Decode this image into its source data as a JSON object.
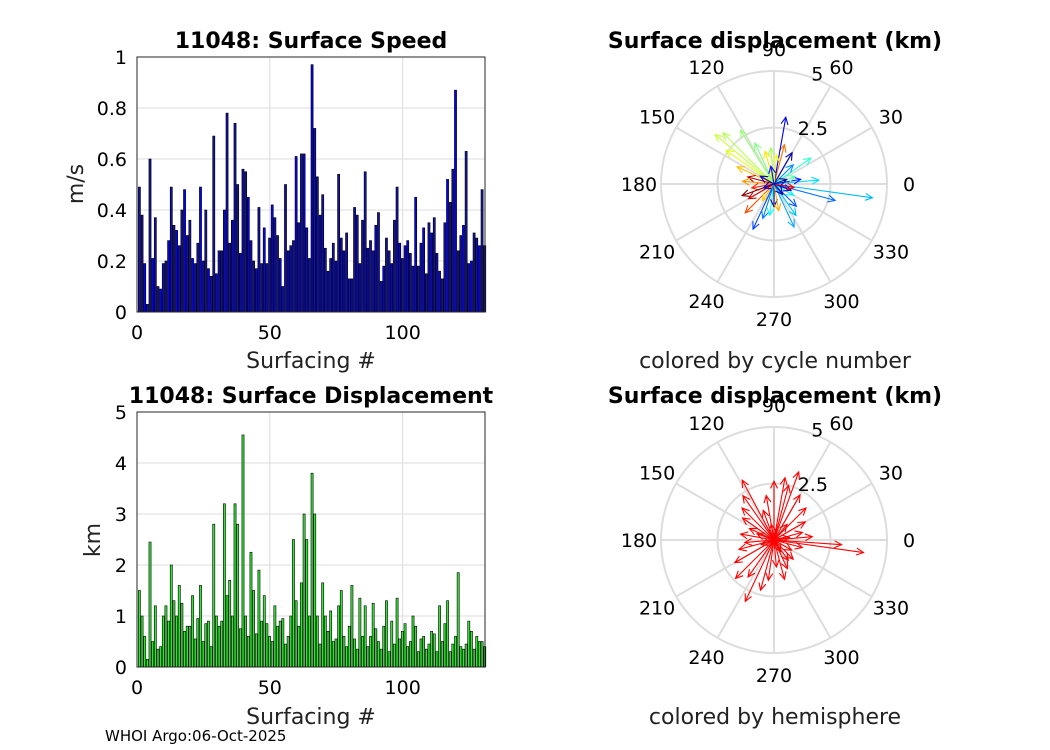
{
  "footer": "WHOI Argo:06-Oct-2025",
  "colors": {
    "speed_bar": "#1212A0",
    "speed_bar_alt": "#0000FF",
    "disp_bar": "#33E533",
    "hemisphere_arrow": "#FF0000",
    "grid": "#DDDDDD"
  },
  "chart_data": [
    {
      "type": "bar",
      "title": "11048: Surface Speed",
      "xlabel": "Surfacing #",
      "ylabel": "m/s",
      "xlim": [
        0,
        131
      ],
      "ylim": [
        0,
        1
      ],
      "xticks": [
        "0",
        "50",
        "100"
      ],
      "yticks": [
        "0",
        "0.2",
        "0.4",
        "0.6",
        "0.8",
        "1"
      ],
      "values": [
        0.49,
        0.38,
        0.19,
        0.03,
        0.6,
        0.21,
        0.37,
        0.1,
        0.09,
        0.19,
        0.2,
        0.28,
        0.49,
        0.34,
        0.32,
        0.26,
        0.4,
        0.48,
        0.3,
        0.36,
        0.21,
        0.19,
        0.27,
        0.49,
        0.2,
        0.4,
        0.17,
        0.14,
        0.69,
        0.15,
        0.24,
        0.24,
        0.4,
        0.78,
        0.27,
        0.36,
        0.74,
        0.5,
        0.23,
        0.56,
        0.55,
        0.45,
        0.28,
        0.2,
        0.17,
        0.41,
        0.19,
        0.33,
        0.19,
        0.29,
        0.42,
        0.37,
        0.3,
        0.21,
        0.1,
        0.5,
        0.24,
        0.26,
        0.28,
        0.61,
        0.35,
        0.62,
        0.62,
        0.33,
        0.21,
        0.97,
        0.72,
        0.53,
        0.38,
        0.46,
        0.25,
        0.16,
        0.21,
        0.27,
        0.2,
        0.54,
        0.29,
        0.24,
        0.31,
        0.13,
        0.13,
        0.41,
        0.38,
        0.19,
        0.36,
        0.55,
        0.25,
        0.28,
        0.24,
        0.34,
        0.39,
        0.12,
        0.18,
        0.29,
        0.24,
        0.19,
        0.36,
        0.49,
        0.27,
        0.21,
        0.26,
        0.28,
        0.23,
        0.18,
        0.45,
        0.18,
        0.27,
        0.33,
        0.15,
        0.35,
        0.31,
        0.37,
        0.23,
        0.16,
        0.13,
        0.35,
        0.52,
        0.43,
        0.56,
        0.87,
        0.24,
        0.3,
        0.34,
        0.63,
        0.19,
        0.2,
        0.31,
        0.29,
        0.26,
        0.48,
        0.26
      ]
    },
    {
      "type": "bar",
      "title": "11048: Surface Displacement",
      "xlabel": "Surfacing #",
      "ylabel": "km",
      "xlim": [
        0,
        131
      ],
      "ylim": [
        0,
        5
      ],
      "xticks": [
        "0",
        "50",
        "100"
      ],
      "yticks": [
        "0",
        "1",
        "2",
        "3",
        "4",
        "5"
      ],
      "values": [
        1.5,
        1.0,
        0.6,
        0.15,
        2.45,
        0.5,
        1.2,
        0.35,
        0.4,
        1.0,
        1.2,
        0.9,
        2.0,
        1.3,
        1.0,
        1.6,
        1.25,
        0.7,
        0.8,
        0.8,
        1.4,
        0.55,
        0.95,
        1.6,
        0.5,
        0.85,
        0.9,
        0.4,
        2.8,
        1.0,
        0.8,
        0.9,
        3.2,
        1.4,
        1.7,
        1.0,
        3.2,
        2.8,
        0.75,
        4.55,
        1.0,
        0.6,
        2.25,
        1.5,
        0.65,
        1.9,
        0.9,
        1.4,
        0.85,
        0.6,
        0.5,
        1.2,
        0.8,
        0.9,
        0.95,
        0.45,
        0.6,
        1.0,
        2.5,
        1.3,
        0.8,
        1.65,
        3.0,
        2.5,
        1.0,
        3.8,
        3.0,
        1.0,
        0.45,
        1.65,
        1.0,
        0.7,
        1.1,
        0.5,
        0.55,
        1.2,
        1.5,
        0.6,
        0.4,
        0.8,
        1.6,
        0.55,
        0.35,
        1.35,
        0.6,
        1.2,
        0.4,
        0.6,
        1.25,
        0.75,
        0.5,
        0.35,
        0.8,
        1.3,
        0.3,
        0.9,
        0.45,
        1.35,
        0.55,
        0.7,
        0.85,
        0.4,
        0.5,
        1.0,
        0.8,
        0.3,
        0.55,
        0.6,
        0.35,
        0.45,
        0.7,
        0.65,
        0.3,
        1.2,
        0.5,
        0.85,
        1.3,
        0.3,
        0.45,
        0.6,
        1.85,
        0.4,
        0.35,
        0.45,
        0.9,
        0.7,
        0.35,
        0.6,
        0.5,
        0.5,
        0.4
      ]
    },
    {
      "type": "polar",
      "title": "Surface displacement (km)",
      "xlabel": "colored by cycle number",
      "rlim": [
        0,
        5
      ],
      "rticks": [
        "2.5",
        "5"
      ],
      "angle_labels": [
        "0",
        "30",
        "60",
        "90",
        "120",
        "150",
        "180",
        "210",
        "240",
        "270",
        "300",
        "330"
      ],
      "color_mode": "cycle",
      "arrows": [
        {
          "angle": -8,
          "r": 4.4,
          "cycle": 40
        },
        {
          "angle": -15,
          "r": 2.8,
          "cycle": 30
        },
        {
          "angle": 5,
          "r": 2.0,
          "cycle": 45
        },
        {
          "angle": 10,
          "r": 1.2,
          "cycle": 20
        },
        {
          "angle": 20,
          "r": 1.0,
          "cycle": 60
        },
        {
          "angle": 35,
          "r": 2.0,
          "cycle": 55
        },
        {
          "angle": 45,
          "r": 1.2,
          "cycle": 35
        },
        {
          "angle": 60,
          "r": 1.6,
          "cycle": 5
        },
        {
          "angle": 75,
          "r": 1.8,
          "cycle": 100
        },
        {
          "angle": 80,
          "r": 3.0,
          "cycle": 15
        },
        {
          "angle": 85,
          "r": 1.3,
          "cycle": 80
        },
        {
          "angle": 95,
          "r": 1.6,
          "cycle": 70
        },
        {
          "angle": 105,
          "r": 1.5,
          "cycle": 85
        },
        {
          "angle": 115,
          "r": 2.0,
          "cycle": 65
        },
        {
          "angle": 122,
          "r": 2.8,
          "cycle": 68
        },
        {
          "angle": 135,
          "r": 3.2,
          "cycle": 72
        },
        {
          "angle": 140,
          "r": 3.4,
          "cycle": 75
        },
        {
          "angle": 145,
          "r": 2.6,
          "cycle": 78
        },
        {
          "angle": 155,
          "r": 1.8,
          "cycle": 90
        },
        {
          "angle": 165,
          "r": 1.2,
          "cycle": 125
        },
        {
          "angle": 175,
          "r": 1.4,
          "cycle": 95
        },
        {
          "angle": 190,
          "r": 1.0,
          "cycle": 110
        },
        {
          "angle": 200,
          "r": 1.5,
          "cycle": 130
        },
        {
          "angle": 210,
          "r": 1.3,
          "cycle": 120
        },
        {
          "angle": 225,
          "r": 1.8,
          "cycle": 105
        },
        {
          "angle": 235,
          "r": 0.9,
          "cycle": 88
        },
        {
          "angle": 245,
          "r": 2.2,
          "cycle": 25
        },
        {
          "angle": 252,
          "r": 1.6,
          "cycle": 33
        },
        {
          "angle": 262,
          "r": 1.4,
          "cycle": 50
        },
        {
          "angle": 270,
          "r": 1.0,
          "cycle": 3
        },
        {
          "angle": 280,
          "r": 1.2,
          "cycle": 92
        },
        {
          "angle": 295,
          "r": 2.1,
          "cycle": 38
        },
        {
          "angle": 305,
          "r": 1.7,
          "cycle": 42
        },
        {
          "angle": 315,
          "r": 1.4,
          "cycle": 28
        },
        {
          "angle": 330,
          "r": 1.0,
          "cycle": 48
        },
        {
          "angle": 340,
          "r": 0.8,
          "cycle": 10
        },
        {
          "angle": 350,
          "r": 0.9,
          "cycle": 115
        },
        {
          "angle": 20,
          "r": 0.6,
          "cycle": 2
        },
        {
          "angle": 150,
          "r": 0.7,
          "cycle": 12
        },
        {
          "angle": 200,
          "r": 0.5,
          "cycle": 8
        },
        {
          "angle": 100,
          "r": 0.8,
          "cycle": 18
        },
        {
          "angle": 310,
          "r": 0.6,
          "cycle": 6
        }
      ]
    },
    {
      "type": "polar",
      "title": "Surface displacement (km)",
      "xlabel": "colored by hemisphere",
      "rlim": [
        0,
        5
      ],
      "rticks": [
        "2.5",
        "5"
      ],
      "angle_labels": [
        "0",
        "30",
        "60",
        "90",
        "120",
        "150",
        "180",
        "210",
        "240",
        "270",
        "300",
        "330"
      ],
      "color_mode": "hemisphere",
      "arrows": [
        {
          "angle": -8,
          "r": 4.0
        },
        {
          "angle": -4,
          "r": 3.0
        },
        {
          "angle": 5,
          "r": 1.7
        },
        {
          "angle": 15,
          "r": 1.3
        },
        {
          "angle": 30,
          "r": 1.6
        },
        {
          "angle": 45,
          "r": 2.0
        },
        {
          "angle": 60,
          "r": 2.3
        },
        {
          "angle": 70,
          "r": 3.2
        },
        {
          "angle": 75,
          "r": 2.5
        },
        {
          "angle": 80,
          "r": 2.8
        },
        {
          "angle": 90,
          "r": 2.6
        },
        {
          "angle": 100,
          "r": 2.0
        },
        {
          "angle": 110,
          "r": 1.4
        },
        {
          "angle": 118,
          "r": 3.0
        },
        {
          "angle": 125,
          "r": 2.4
        },
        {
          "angle": 135,
          "r": 2.0
        },
        {
          "angle": 145,
          "r": 1.7
        },
        {
          "angle": 155,
          "r": 1.2
        },
        {
          "angle": 170,
          "r": 1.5
        },
        {
          "angle": 185,
          "r": 1.3
        },
        {
          "angle": 195,
          "r": 1.6
        },
        {
          "angle": 210,
          "r": 2.0
        },
        {
          "angle": 225,
          "r": 2.4
        },
        {
          "angle": 235,
          "r": 2.0
        },
        {
          "angle": 245,
          "r": 3.0
        },
        {
          "angle": 255,
          "r": 2.3
        },
        {
          "angle": 262,
          "r": 1.8
        },
        {
          "angle": 275,
          "r": 1.2
        },
        {
          "angle": 285,
          "r": 1.8
        },
        {
          "angle": 295,
          "r": 1.4
        },
        {
          "angle": 305,
          "r": 1.1
        },
        {
          "angle": 315,
          "r": 1.2
        },
        {
          "angle": 330,
          "r": 0.9
        },
        {
          "angle": 345,
          "r": 1.3
        },
        {
          "angle": 10,
          "r": 0.7
        },
        {
          "angle": 160,
          "r": 0.8
        },
        {
          "angle": 200,
          "r": 0.6
        },
        {
          "angle": 100,
          "r": 0.7
        },
        {
          "angle": 300,
          "r": 0.6
        },
        {
          "angle": 50,
          "r": 0.9
        }
      ]
    }
  ]
}
